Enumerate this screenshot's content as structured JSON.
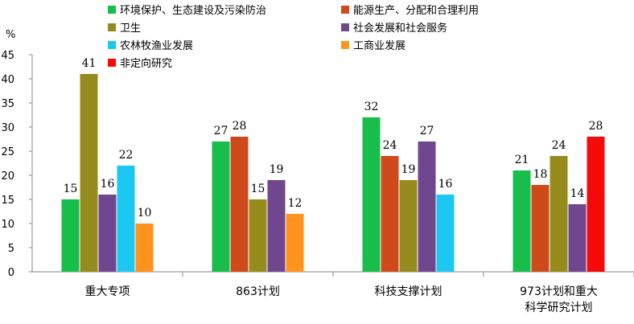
{
  "chart_data": {
    "type": "bar",
    "ylabel": "%",
    "ylim": [
      0,
      45
    ],
    "yticks": [
      0,
      5,
      10,
      15,
      20,
      25,
      30,
      35,
      40,
      45
    ],
    "grid": false,
    "legend_position": "top",
    "groups": [
      {
        "label_lines": [
          "重大专项"
        ],
        "bars": [
          {
            "series": "环境保护、生态建设及污染防治",
            "value": 15
          },
          {
            "series": "卫生",
            "value": 41
          },
          {
            "series": "社会发展和社会服务",
            "value": 16
          },
          {
            "series": "农林牧渔业发展",
            "value": 22
          },
          {
            "series": "工商业发展",
            "value": 10
          }
        ]
      },
      {
        "label_lines": [
          "863计划"
        ],
        "bars": [
          {
            "series": "环境保护、生态建设及污染防治",
            "value": 27
          },
          {
            "series": "能源生产、分配和合理利用",
            "value": 28
          },
          {
            "series": "卫生",
            "value": 15
          },
          {
            "series": "社会发展和社会服务",
            "value": 19
          },
          {
            "series": "工商业发展",
            "value": 12
          }
        ]
      },
      {
        "label_lines": [
          "科技支撑计划"
        ],
        "bars": [
          {
            "series": "环境保护、生态建设及污染防治",
            "value": 32
          },
          {
            "series": "能源生产、分配和合理利用",
            "value": 24
          },
          {
            "series": "卫生",
            "value": 19
          },
          {
            "series": "社会发展和社会服务",
            "value": 27
          },
          {
            "series": "农林牧渔业发展",
            "value": 16
          }
        ]
      },
      {
        "label_lines": [
          "973计划和重大",
          "科学研究计划"
        ],
        "bars": [
          {
            "series": "环境保护、生态建设及污染防治",
            "value": 21
          },
          {
            "series": "能源生产、分配和合理利用",
            "value": 18
          },
          {
            "series": "卫生",
            "value": 24
          },
          {
            "series": "社会发展和社会服务",
            "value": 14
          },
          {
            "series": "非定向研究",
            "value": 28
          }
        ]
      }
    ],
    "series": [
      {
        "name": "环境保护、生态建设及污染防治",
        "color": "#17BE4B"
      },
      {
        "name": "能源生产、分配和合理利用",
        "color": "#CF4A1B"
      },
      {
        "name": "卫生",
        "color": "#958C1D"
      },
      {
        "name": "社会发展和社会服务",
        "color": "#70478F"
      },
      {
        "name": "农林牧渔业发展",
        "color": "#1CC8F2"
      },
      {
        "name": "工商业发展",
        "color": "#FF931E"
      },
      {
        "name": "非定向研究",
        "color": "#F50A0A"
      }
    ]
  }
}
